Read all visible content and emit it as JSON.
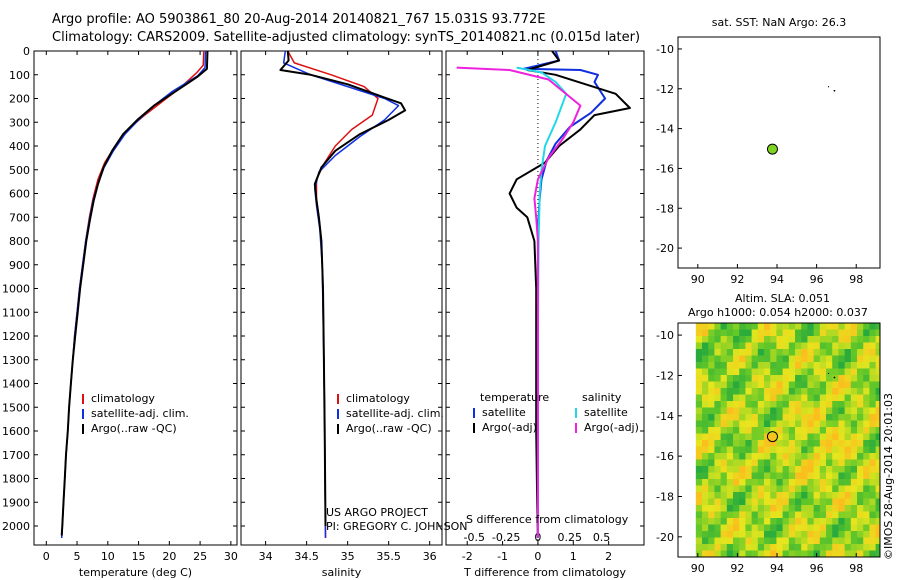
{
  "titles": {
    "line1": "Argo profile: AO 5903861_80 20-Aug-2014 20140821_767 15.031S 93.772E",
    "line2": "Climatology: CARS2009. Satellite-adjusted climatology: synTS_20140821.nc (0.015d later)"
  },
  "colors": {
    "climatology": "#dd1010",
    "satellite": "#1030e0",
    "argo": "#000000",
    "sat_sal": "#22d8e8",
    "argo_sal": "#ee22dd",
    "argo_dot": "#7ed321"
  },
  "chart_data": [
    {
      "id": "temperature",
      "type": "line",
      "xlabel": "temperature (deg C)",
      "ylabel": "",
      "xlim": [
        -2,
        31
      ],
      "ylim": [
        2080,
        0
      ],
      "xticks": [
        0,
        5,
        10,
        15,
        20,
        25,
        30
      ],
      "yticks": [
        0,
        100,
        200,
        300,
        400,
        500,
        600,
        700,
        800,
        900,
        1000,
        1100,
        1200,
        1300,
        1400,
        1500,
        1600,
        1700,
        1800,
        1900,
        2000
      ],
      "legend": [
        "climatology",
        "satellite-adj. clim.",
        "Argo(..raw -QC)"
      ],
      "series": [
        {
          "name": "climatology",
          "color_key": "climatology",
          "points": [
            [
              25.6,
              0
            ],
            [
              25.5,
              60
            ],
            [
              24.5,
              90
            ],
            [
              22,
              150
            ],
            [
              19,
              210
            ],
            [
              16,
              270
            ],
            [
              13.3,
              330
            ],
            [
              11.2,
              400
            ],
            [
              9.5,
              470
            ],
            [
              8.4,
              540
            ],
            [
              7.6,
              620
            ],
            [
              7,
              700
            ],
            [
              6.4,
              800
            ],
            [
              5.9,
              900
            ],
            [
              5.4,
              1000
            ],
            [
              5,
              1100
            ],
            [
              4.6,
              1200
            ],
            [
              4.3,
              1300
            ],
            [
              4,
              1400
            ],
            [
              3.7,
              1500
            ],
            [
              3.5,
              1600
            ],
            [
              3.2,
              1700
            ],
            [
              3,
              1800
            ],
            [
              2.8,
              1900
            ],
            [
              2.6,
              2000
            ],
            [
              2.5,
              2050
            ]
          ]
        },
        {
          "name": "satellite",
          "color_key": "satellite",
          "points": [
            [
              25.9,
              0
            ],
            [
              25.8,
              70
            ],
            [
              24.6,
              105
            ],
            [
              20.5,
              170
            ],
            [
              17.5,
              230
            ],
            [
              15,
              290
            ],
            [
              12.8,
              350
            ],
            [
              10.9,
              420
            ],
            [
              9.4,
              490
            ],
            [
              8.4,
              560
            ],
            [
              7.6,
              630
            ],
            [
              7,
              710
            ],
            [
              6.4,
              800
            ],
            [
              5.9,
              900
            ],
            [
              5.4,
              1000
            ],
            [
              5,
              1100
            ],
            [
              4.6,
              1200
            ],
            [
              4.3,
              1300
            ],
            [
              4,
              1400
            ],
            [
              3.7,
              1500
            ],
            [
              3.5,
              1600
            ],
            [
              3.2,
              1700
            ],
            [
              3,
              1800
            ],
            [
              2.8,
              1900
            ],
            [
              2.6,
              2000
            ],
            [
              2.5,
              2050
            ]
          ]
        },
        {
          "name": "argo",
          "color_key": "argo",
          "points": [
            [
              26.2,
              0
            ],
            [
              26.1,
              75
            ],
            [
              24.5,
              110
            ],
            [
              21,
              170
            ],
            [
              17.5,
              230
            ],
            [
              14.8,
              290
            ],
            [
              12.5,
              350
            ],
            [
              10.7,
              420
            ],
            [
              9.3,
              490
            ],
            [
              8.4,
              560
            ],
            [
              7.7,
              630
            ],
            [
              7.1,
              710
            ],
            [
              6.5,
              800
            ],
            [
              6,
              900
            ],
            [
              5.5,
              1000
            ],
            [
              5.1,
              1100
            ],
            [
              4.7,
              1200
            ],
            [
              4.3,
              1300
            ],
            [
              4,
              1400
            ],
            [
              3.7,
              1500
            ],
            [
              3.5,
              1600
            ],
            [
              3.2,
              1700
            ],
            [
              3,
              1800
            ],
            [
              2.8,
              1900
            ],
            [
              2.6,
              2000
            ],
            [
              2.5,
              2040
            ]
          ]
        }
      ]
    },
    {
      "id": "salinity",
      "type": "line",
      "xlabel": "salinity",
      "xlim": [
        33.7,
        36.15
      ],
      "ylim": [
        2080,
        0
      ],
      "xticks": [
        34,
        34.5,
        35,
        35.5,
        36
      ],
      "legend": [
        "climatology",
        "satellite-adj. clim.",
        "Argo(..raw -QC)"
      ],
      "annotation": [
        "US ARGO PROJECT",
        "PI: GREGORY C. JOHNSON"
      ],
      "series": [
        {
          "name": "climatology",
          "color_key": "climatology",
          "points": [
            [
              34.27,
              0
            ],
            [
              34.35,
              50
            ],
            [
              34.8,
              100
            ],
            [
              35.2,
              150
            ],
            [
              35.37,
              200
            ],
            [
              35.3,
              270
            ],
            [
              35.05,
              330
            ],
            [
              34.85,
              400
            ],
            [
              34.72,
              470
            ],
            [
              34.62,
              540
            ],
            [
              34.62,
              620
            ],
            [
              34.65,
              700
            ],
            [
              34.68,
              800
            ],
            [
              34.7,
              1000
            ],
            [
              34.71,
              1300
            ],
            [
              34.72,
              1600
            ],
            [
              34.73,
              2050
            ]
          ]
        },
        {
          "name": "satellite",
          "color_key": "satellite",
          "points": [
            [
              34.24,
              0
            ],
            [
              34.22,
              50
            ],
            [
              34.55,
              100
            ],
            [
              35,
              150
            ],
            [
              35.45,
              200
            ],
            [
              35.62,
              230
            ],
            [
              35.45,
              290
            ],
            [
              35.15,
              360
            ],
            [
              34.85,
              440
            ],
            [
              34.65,
              510
            ],
            [
              34.6,
              580
            ],
            [
              34.62,
              650
            ],
            [
              34.66,
              750
            ],
            [
              34.69,
              900
            ],
            [
              34.7,
              1100
            ],
            [
              34.71,
              1300
            ],
            [
              34.72,
              1600
            ],
            [
              34.73,
              2050
            ]
          ]
        },
        {
          "name": "argo",
          "color_key": "argo",
          "points": [
            [
              34.27,
              0
            ],
            [
              34.28,
              40
            ],
            [
              34.18,
              80
            ],
            [
              34.55,
              100
            ],
            [
              35,
              140
            ],
            [
              35.4,
              190
            ],
            [
              35.65,
              220
            ],
            [
              35.7,
              250
            ],
            [
              35.5,
              290
            ],
            [
              35.15,
              350
            ],
            [
              34.85,
              420
            ],
            [
              34.68,
              490
            ],
            [
              34.6,
              560
            ],
            [
              34.62,
              630
            ],
            [
              34.65,
              700
            ],
            [
              34.68,
              800
            ],
            [
              34.7,
              1000
            ],
            [
              34.71,
              1300
            ],
            [
              34.72,
              1600
            ],
            [
              34.73,
              2000
            ]
          ]
        }
      ]
    },
    {
      "id": "difference",
      "type": "line",
      "xlabel": "T difference from climatology",
      "top_axis_label": "S difference from climatology",
      "xlim": [
        -2.6,
        3.0
      ],
      "ylim": [
        2080,
        0
      ],
      "xticks_bottom": [
        -2,
        -1,
        0,
        1,
        2
      ],
      "xticks_top_labels": [
        "-0.5",
        "-0.25",
        "0",
        "0.25",
        "0.5"
      ],
      "xticks_top_pos": [
        -1.8,
        -0.9,
        0,
        0.9,
        1.8
      ],
      "legend_temp_head": "temperature",
      "legend_sal_head": "salinity",
      "legend": [
        "satellite",
        "Argo(-adj)",
        "satellite",
        "Argo(-adj)"
      ],
      "series": [
        {
          "name": "T satellite",
          "color_key": "satellite",
          "points": [
            [
              0.5,
              0
            ],
            [
              0.6,
              40
            ],
            [
              -0.4,
              75
            ],
            [
              1.2,
              80
            ],
            [
              1.7,
              100
            ],
            [
              1.6,
              130
            ],
            [
              1.9,
              200
            ],
            [
              1.5,
              260
            ],
            [
              0.9,
              320
            ],
            [
              0.5,
              390
            ],
            [
              0.25,
              460
            ],
            [
              0.1,
              540
            ],
            [
              0.05,
              620
            ],
            [
              0.02,
              700
            ],
            [
              0,
              900
            ],
            [
              0,
              1300
            ],
            [
              0,
              1700
            ],
            [
              0,
              2050
            ]
          ]
        },
        {
          "name": "T argo",
          "color_key": "argo",
          "points": [
            [
              0.4,
              0
            ],
            [
              0.6,
              40
            ],
            [
              -0.3,
              80
            ],
            [
              0.5,
              100
            ],
            [
              2.2,
              180
            ],
            [
              2.6,
              240
            ],
            [
              1.6,
              270
            ],
            [
              1.2,
              330
            ],
            [
              0.6,
              400
            ],
            [
              0.2,
              470
            ],
            [
              -0.6,
              540
            ],
            [
              -0.8,
              600
            ],
            [
              -0.6,
              660
            ],
            [
              -0.3,
              700
            ],
            [
              -0.1,
              800
            ],
            [
              -0.05,
              1000
            ],
            [
              -0.05,
              1300
            ],
            [
              -0.05,
              1600
            ],
            [
              -0.02,
              1900
            ],
            [
              0,
              2050
            ]
          ]
        },
        {
          "name": "S satellite",
          "color_key": "sat_sal",
          "points": [
            [
              -0.6,
              70
            ],
            [
              0.1,
              90
            ],
            [
              0.5,
              130
            ],
            [
              0.8,
              180
            ],
            [
              0.7,
              220
            ],
            [
              0.5,
              300
            ],
            [
              0.2,
              400
            ],
            [
              0.1,
              500
            ],
            [
              0.05,
              600
            ],
            [
              0.02,
              800
            ],
            [
              0,
              1200
            ],
            [
              0,
              2050
            ]
          ]
        },
        {
          "name": "S argo",
          "color_key": "argo_sal",
          "points": [
            [
              -2.3,
              70
            ],
            [
              -0.8,
              80
            ],
            [
              0.3,
              120
            ],
            [
              1.2,
              230
            ],
            [
              1.0,
              300
            ],
            [
              0.7,
              370
            ],
            [
              0.3,
              450
            ],
            [
              0.0,
              540
            ],
            [
              -0.1,
              620
            ],
            [
              -0.05,
              700
            ],
            [
              0,
              800
            ],
            [
              0,
              1200
            ],
            [
              0,
              2050
            ]
          ]
        }
      ]
    },
    {
      "id": "sst_map",
      "type": "scatter",
      "title": "sat. SST: NaN Argo: 26.3",
      "xlim": [
        89,
        99.2
      ],
      "ylim": [
        -21,
        -9.4
      ],
      "xticks": [
        90,
        92,
        94,
        96,
        98
      ],
      "yticks": [
        -10,
        -12,
        -14,
        -16,
        -18,
        -20
      ],
      "points": [
        {
          "x": 93.77,
          "y": -15.03,
          "label": "Argo"
        }
      ]
    },
    {
      "id": "sla_map",
      "type": "heatmap",
      "title_line1": "Altim. SLA: 0.051",
      "title_line2": "Argo h1000: 0.054 h2000: 0.037",
      "side_label": "©IMOS 28-Aug-2014 20:01:03",
      "xlim": [
        89,
        99.2
      ],
      "ylim": [
        -21,
        -9.4
      ],
      "xticks": [
        90,
        92,
        94,
        96,
        98
      ],
      "yticks": [
        -10,
        -12,
        -14,
        -16,
        -18,
        -20
      ],
      "points": [
        {
          "x": 93.77,
          "y": -15.03,
          "label": "Argo"
        }
      ]
    }
  ]
}
